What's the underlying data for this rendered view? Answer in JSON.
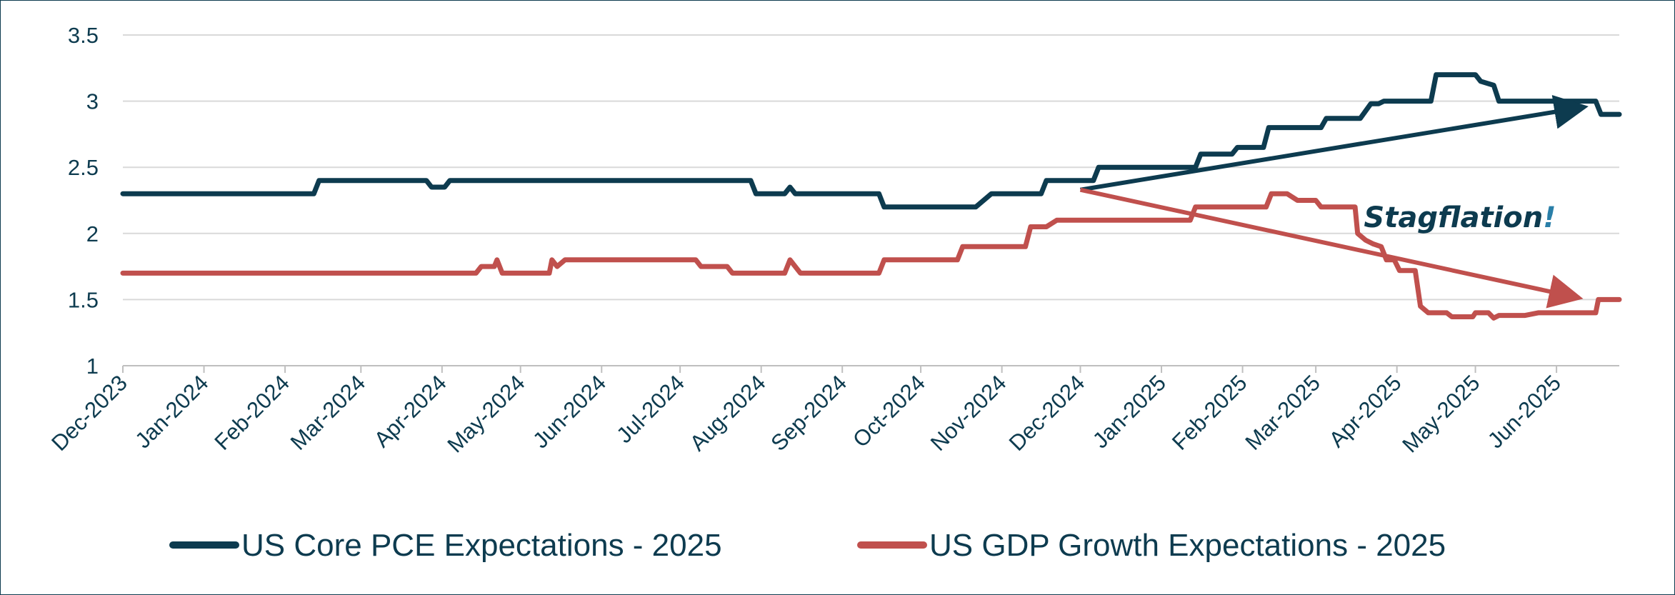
{
  "chart_data": {
    "type": "line",
    "title": "",
    "xlabel": "",
    "ylabel": "",
    "x_range": [
      "2023-12-01",
      "2025-06-25"
    ],
    "ylim": [
      1,
      3.5
    ],
    "y_ticks": [
      "1",
      "1.5",
      "2",
      "2.5",
      "3",
      "3.5"
    ],
    "y_tick_values": [
      1,
      1.5,
      2,
      2.5,
      3,
      3.5
    ],
    "x_ticks": [
      "Dec-2023",
      "Jan-2024",
      "Feb-2024",
      "Mar-2024",
      "Apr-2024",
      "May-2024",
      "Jun-2024",
      "Jul-2024",
      "Aug-2024",
      "Sep-2024",
      "Oct-2024",
      "Nov-2024",
      "Dec-2024",
      "Jan-2025",
      "Feb-2025",
      "Mar-2025",
      "Apr-2025",
      "May-2025",
      "Jun-2025"
    ],
    "x_tick_dates": [
      "2023-12-01",
      "2024-01-01",
      "2024-02-01",
      "2024-03-01",
      "2024-04-01",
      "2024-05-01",
      "2024-06-01",
      "2024-07-01",
      "2024-08-01",
      "2024-09-01",
      "2024-10-01",
      "2024-11-01",
      "2024-12-01",
      "2025-01-01",
      "2025-02-01",
      "2025-03-01",
      "2025-04-01",
      "2025-05-01",
      "2025-06-01"
    ],
    "grid": true,
    "legend_position": "bottom",
    "series": [
      {
        "name": "US Core PCE Expectations - 2025",
        "color": "#0d3b4f",
        "points": [
          [
            "2023-12-01",
            2.3
          ],
          [
            "2024-02-12",
            2.3
          ],
          [
            "2024-02-14",
            2.4
          ],
          [
            "2024-03-26",
            2.4
          ],
          [
            "2024-03-28",
            2.35
          ],
          [
            "2024-04-02",
            2.35
          ],
          [
            "2024-04-04",
            2.4
          ],
          [
            "2024-07-28",
            2.4
          ],
          [
            "2024-07-30",
            2.3
          ],
          [
            "2024-08-10",
            2.3
          ],
          [
            "2024-08-12",
            2.35
          ],
          [
            "2024-08-14",
            2.3
          ],
          [
            "2024-09-15",
            2.3
          ],
          [
            "2024-09-17",
            2.2
          ],
          [
            "2024-10-22",
            2.2
          ],
          [
            "2024-10-28",
            2.3
          ],
          [
            "2024-11-16",
            2.3
          ],
          [
            "2024-11-18",
            2.4
          ],
          [
            "2024-12-06",
            2.4
          ],
          [
            "2024-12-08",
            2.5
          ],
          [
            "2025-01-14",
            2.5
          ],
          [
            "2025-01-16",
            2.6
          ],
          [
            "2025-01-28",
            2.6
          ],
          [
            "2025-01-30",
            2.65
          ],
          [
            "2025-02-09",
            2.65
          ],
          [
            "2025-02-11",
            2.8
          ],
          [
            "2025-03-03",
            2.8
          ],
          [
            "2025-03-05",
            2.87
          ],
          [
            "2025-03-18",
            2.87
          ],
          [
            "2025-03-22",
            2.98
          ],
          [
            "2025-03-25",
            2.98
          ],
          [
            "2025-03-27",
            3.0
          ],
          [
            "2025-04-14",
            3.0
          ],
          [
            "2025-04-16",
            3.2
          ],
          [
            "2025-05-01",
            3.2
          ],
          [
            "2025-05-03",
            3.15
          ],
          [
            "2025-05-08",
            3.12
          ],
          [
            "2025-05-10",
            3.0
          ],
          [
            "2025-06-16",
            3.0
          ],
          [
            "2025-06-18",
            2.9
          ],
          [
            "2025-06-25",
            2.9
          ]
        ]
      },
      {
        "name": "US GDP Growth Expectations - 2025",
        "color": "#c0504d",
        "points": [
          [
            "2023-12-01",
            1.7
          ],
          [
            "2024-04-14",
            1.7
          ],
          [
            "2024-04-16",
            1.75
          ],
          [
            "2024-04-21",
            1.75
          ],
          [
            "2024-04-22",
            1.8
          ],
          [
            "2024-04-24",
            1.7
          ],
          [
            "2024-05-12",
            1.7
          ],
          [
            "2024-05-13",
            1.8
          ],
          [
            "2024-05-15",
            1.75
          ],
          [
            "2024-05-18",
            1.8
          ],
          [
            "2024-07-07",
            1.8
          ],
          [
            "2024-07-09",
            1.75
          ],
          [
            "2024-07-19",
            1.75
          ],
          [
            "2024-07-21",
            1.7
          ],
          [
            "2024-08-10",
            1.7
          ],
          [
            "2024-08-12",
            1.8
          ],
          [
            "2024-08-16",
            1.7
          ],
          [
            "2024-09-15",
            1.7
          ],
          [
            "2024-09-17",
            1.8
          ],
          [
            "2024-10-15",
            1.8
          ],
          [
            "2024-10-17",
            1.9
          ],
          [
            "2024-11-10",
            1.9
          ],
          [
            "2024-11-12",
            2.05
          ],
          [
            "2024-11-18",
            2.05
          ],
          [
            "2024-11-22",
            2.1
          ],
          [
            "2025-01-12",
            2.1
          ],
          [
            "2025-01-14",
            2.2
          ],
          [
            "2025-02-10",
            2.2
          ],
          [
            "2025-02-12",
            2.3
          ],
          [
            "2025-02-18",
            2.3
          ],
          [
            "2025-02-22",
            2.25
          ],
          [
            "2025-03-01",
            2.25
          ],
          [
            "2025-03-03",
            2.2
          ],
          [
            "2025-03-16",
            2.2
          ],
          [
            "2025-03-17",
            2.0
          ],
          [
            "2025-03-20",
            1.95
          ],
          [
            "2025-03-23",
            1.92
          ],
          [
            "2025-03-26",
            1.9
          ],
          [
            "2025-03-28",
            1.8
          ],
          [
            "2025-03-31",
            1.8
          ],
          [
            "2025-04-02",
            1.72
          ],
          [
            "2025-04-08",
            1.72
          ],
          [
            "2025-04-10",
            1.45
          ],
          [
            "2025-04-13",
            1.4
          ],
          [
            "2025-04-20",
            1.4
          ],
          [
            "2025-04-22",
            1.37
          ],
          [
            "2025-04-30",
            1.37
          ],
          [
            "2025-05-01",
            1.4
          ],
          [
            "2025-05-06",
            1.4
          ],
          [
            "2025-05-08",
            1.36
          ],
          [
            "2025-05-10",
            1.38
          ],
          [
            "2025-05-20",
            1.38
          ],
          [
            "2025-05-25",
            1.4
          ],
          [
            "2025-06-16",
            1.4
          ],
          [
            "2025-06-17",
            1.5
          ],
          [
            "2025-06-25",
            1.5
          ]
        ]
      }
    ],
    "annotations": [
      {
        "type": "arrow",
        "color": "#0d3b4f",
        "from": [
          "2024-12-01",
          2.33
        ],
        "to": [
          "2025-06-10",
          2.95
        ]
      },
      {
        "type": "arrow",
        "color": "#c0504d",
        "from": [
          "2024-12-01",
          2.33
        ],
        "to": [
          "2025-06-08",
          1.52
        ]
      }
    ],
    "annotation_text": {
      "main": "Stagflation",
      "suffix": "!",
      "color": "#0d3b4f",
      "suffix_color": "#2a7fa8",
      "anchor": [
        "2025-03-15",
        2.2
      ]
    }
  }
}
